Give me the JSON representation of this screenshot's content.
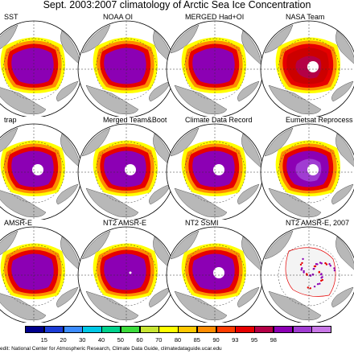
{
  "title": "Sept. 2003:2007 climatology of Arctic Sea Ice Concentration",
  "panels": [
    {
      "label": "SST",
      "style": "full"
    },
    {
      "label": "NOAA OI",
      "style": "full"
    },
    {
      "label": "MERGED Had+OI",
      "style": "full"
    },
    {
      "label": "NASA Team",
      "style": "red_hole"
    },
    {
      "label": "trap",
      "style": "hole"
    },
    {
      "label": "Merged Team&Boot",
      "style": "hole"
    },
    {
      "label": "Climate Data Record",
      "style": "hole"
    },
    {
      "label": "Eumetsat Reprocess",
      "style": "purple_hole"
    },
    {
      "label": "AMSR-E",
      "style": "full"
    },
    {
      "label": "NT2 AMSR-E",
      "style": "full_dot"
    },
    {
      "label": "NT2 SSMI",
      "style": "hole"
    },
    {
      "label": "NT2 AMSR-E, 2007",
      "style": "sparse"
    }
  ],
  "colorbar": {
    "colors": [
      "#00008b",
      "#1c3cd6",
      "#3c8cff",
      "#00c8e6",
      "#00d28c",
      "#3cdc3c",
      "#c8e632",
      "#ffff00",
      "#ffc800",
      "#ff8c00",
      "#ff3c00",
      "#e60000",
      "#b40046",
      "#8c00b4",
      "#a03cd2",
      "#c878e6"
    ],
    "tick_labels": [
      "15",
      "20",
      "30",
      "40",
      "50",
      "60",
      "70",
      "80",
      "85",
      "90",
      "93",
      "95",
      "98"
    ]
  },
  "credit": "edit: National Center for Atmospheric Research, Climate Data Guide, climatedataguide.ucar.edu"
}
